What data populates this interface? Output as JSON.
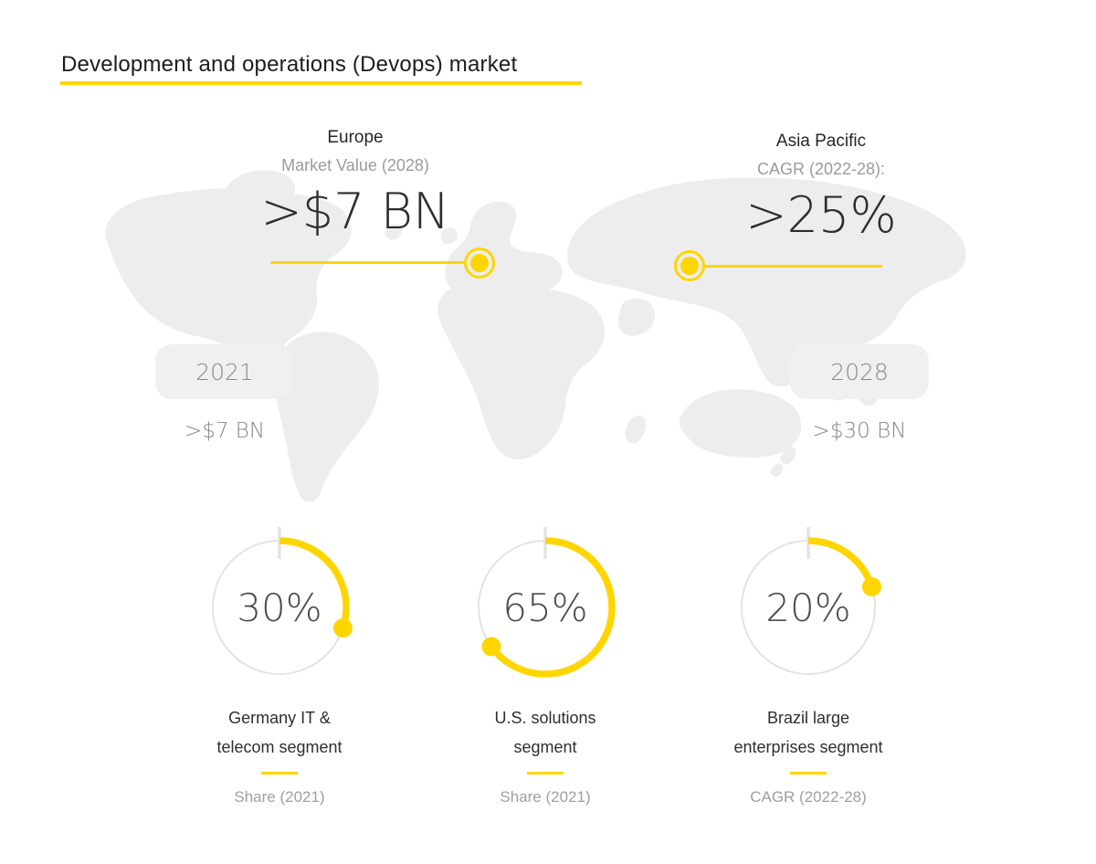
{
  "theme": {
    "accent": "#FFD500",
    "map_fill": "#EDEDED",
    "badge_bg": "#F0F0F0"
  },
  "chart_data": {
    "type": "pie",
    "variant": "infographic: world map callouts + timeline + donut gauges",
    "title": "Development and operations (Devops) market",
    "map_callouts": [
      {
        "region": "Europe",
        "metric": "Market Value (2028)",
        "value": ">$7 BN",
        "marker": "ring-dot-icon",
        "line_side": "line-extends-left-of-marker"
      },
      {
        "region": "Asia Pacific",
        "metric": "CAGR (2022-28):",
        "value": ">25%",
        "marker": "ring-dot-icon",
        "line_side": "line-extends-right-of-marker"
      }
    ],
    "timeline": [
      {
        "year": "2021",
        "value": ">$7 BN"
      },
      {
        "year": "2028",
        "value": ">$30 BN"
      }
    ],
    "gauges": [
      {
        "value": 30,
        "display": "30%",
        "label_lines": [
          "Germany IT &",
          "telecom segment"
        ],
        "caption": "Share (2021)"
      },
      {
        "value": 65,
        "display": "65%",
        "label_lines": [
          "U.S. solutions",
          "segment"
        ],
        "caption": "Share (2021)"
      },
      {
        "value": 20,
        "display": "20%",
        "label_lines": [
          "Brazil large",
          "enterprises segment"
        ],
        "caption": "CAGR (2022-28)"
      }
    ]
  }
}
